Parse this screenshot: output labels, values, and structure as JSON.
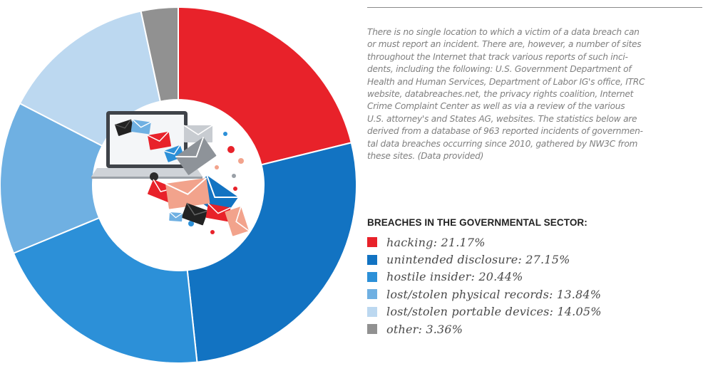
{
  "description": "There is no single location to which a victim of a data breach can or must report an incident. There are, however, a number of sites throughout the Internet that track various reports of such incidents, including the following: U.S. Government Department of Health and Human Services, Department of Labor IG's office, ITRC website, databreaches.net, the privacy rights coalition, Internet Crime Complaint Center as well as via a review of the various U.S. attorney's and States AG, websites. The statistics below are derived from a database of 963 reported incidents of governmental data breaches occurring since 2010, gathered by NW3C from these sites. (Data provided)",
  "description_lines": [
    "There is no single location to which a victim of a data breach can",
    "or must report an incident. There are, however, a number of sites",
    "throughout the Internet that track various reports of such inci-",
    "dents, including the following: U.S. Government Department of",
    "Health and Human Services, Department of Labor IG's office, ITRC",
    "website, databreaches.net, the privacy rights coalition, Internet",
    "Crime Complaint Center as well as via a review of the various",
    "U.S. attorney's and States AG, websites. The statistics below are",
    "derived from a database of 963 reported incidents of governmen-",
    "tal data breaches occurring since 2010, gathered by NW3C from",
    "these sites. (Data provided)"
  ],
  "chart_data": {
    "type": "pie",
    "style": "donut",
    "title": "BREACHES IN THE GOVERNMENTAL SECTOR:",
    "legend_placement": "right",
    "center_graphic": "laptop-with-envelopes-icon",
    "slices": [
      {
        "label": "hacking",
        "value": 21.17,
        "text": "hacking: 21.17%",
        "color": "#e8222a"
      },
      {
        "label": "unintended disclosure",
        "value": 27.15,
        "text": "unintended disclosure: 27.15%",
        "color": "#1273c2"
      },
      {
        "label": "hostile insider",
        "value": 20.44,
        "text": "hostile insider: 20.44%",
        "color": "#2c90d8"
      },
      {
        "label": "lost/stolen physical records",
        "value": 13.84,
        "text": "lost/stolen physical records: 13.84%",
        "color": "#6fb0e2"
      },
      {
        "label": "lost/stolen portable devices",
        "value": 14.05,
        "text": "lost/stolen portable devices: 14.05%",
        "color": "#bcd8f0"
      },
      {
        "label": "other",
        "value": 3.36,
        "text": "other: 3.36%",
        "color": "#919191"
      }
    ]
  }
}
